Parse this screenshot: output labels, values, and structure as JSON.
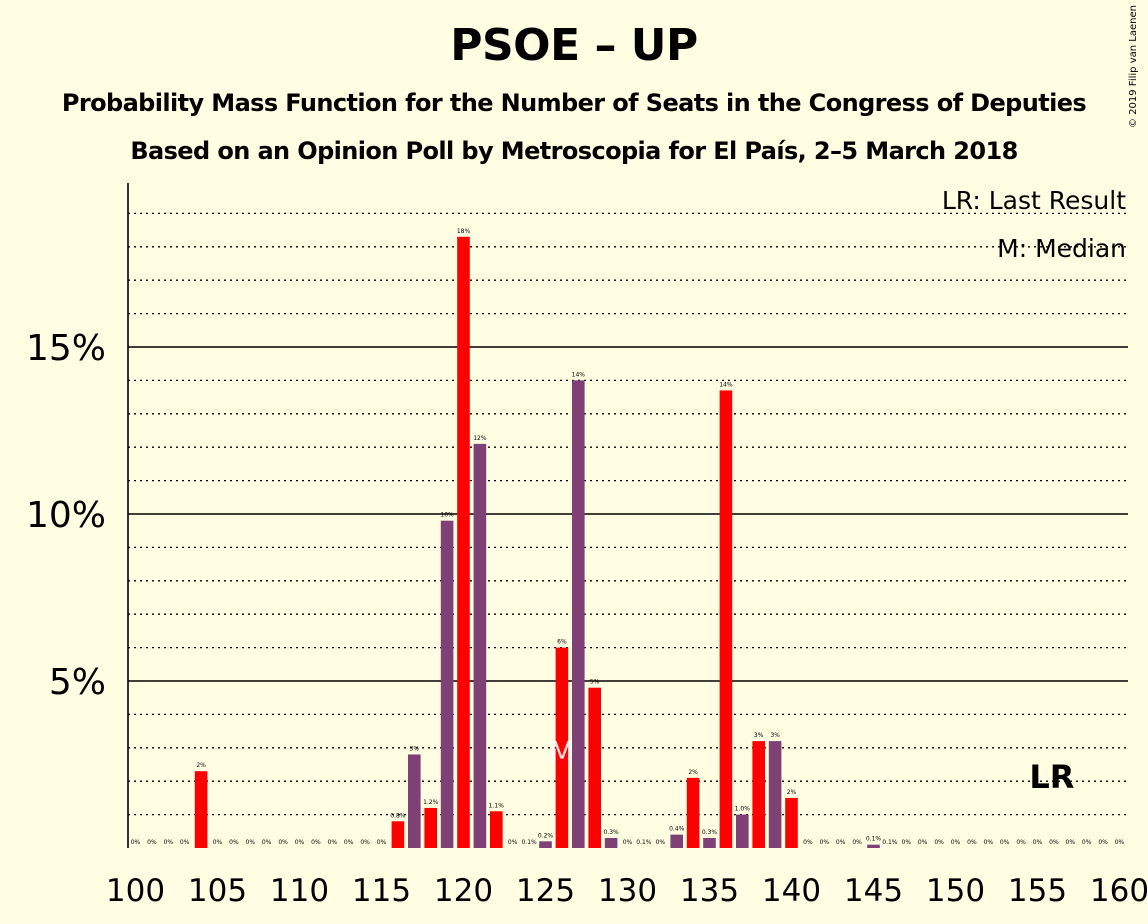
{
  "title": "PSOE – UP",
  "subtitle1": "Probability Mass Function for the Number of Seats in the Congress of Deputies",
  "subtitle2": "Based on an Opinion Poll by Metroscopia for El País, 2–5 March 2018",
  "copyright": "© 2019 Filip van Laenen",
  "legend": {
    "lr": "LR: Last Result",
    "m": "M: Median"
  },
  "markers": {
    "median_label": "M",
    "median_seat": 126,
    "lr_label": "LR",
    "lr_seat": 156
  },
  "colors": {
    "background": "#FFFEE3",
    "red": "#FF0000",
    "purple": "#7E4075"
  },
  "chart_data": {
    "type": "bar",
    "xlabel": "",
    "ylabel": "",
    "xlim": [
      100,
      160
    ],
    "ylim": [
      0,
      20
    ],
    "x_tick_labels": [
      "100",
      "105",
      "110",
      "115",
      "120",
      "125",
      "130",
      "135",
      "140",
      "145",
      "150",
      "155",
      "160"
    ],
    "y_tick_labels": [
      "5%",
      "10%",
      "15%"
    ],
    "bars": [
      {
        "x": 100,
        "v": 0,
        "label": "0%",
        "color": "purple"
      },
      {
        "x": 101,
        "v": 0,
        "label": "0%",
        "color": "purple"
      },
      {
        "x": 102,
        "v": 0,
        "label": "0%",
        "color": "purple"
      },
      {
        "x": 103,
        "v": 0,
        "label": "0%",
        "color": "purple"
      },
      {
        "x": 104,
        "v": 2.3,
        "label": "2%",
        "color": "red"
      },
      {
        "x": 105,
        "v": 0,
        "label": "0%",
        "color": "purple"
      },
      {
        "x": 106,
        "v": 0,
        "label": "0%",
        "color": "purple"
      },
      {
        "x": 107,
        "v": 0,
        "label": "0%",
        "color": "purple"
      },
      {
        "x": 108,
        "v": 0,
        "label": "0%",
        "color": "purple"
      },
      {
        "x": 109,
        "v": 0,
        "label": "0%",
        "color": "purple"
      },
      {
        "x": 110,
        "v": 0,
        "label": "0%",
        "color": "purple"
      },
      {
        "x": 111,
        "v": 0,
        "label": "0%",
        "color": "purple"
      },
      {
        "x": 112,
        "v": 0,
        "label": "0%",
        "color": "purple"
      },
      {
        "x": 113,
        "v": 0,
        "label": "0%",
        "color": "purple"
      },
      {
        "x": 114,
        "v": 0,
        "label": "0%",
        "color": "purple"
      },
      {
        "x": 115,
        "v": 0,
        "label": "0%",
        "color": "purple"
      },
      {
        "x": 116,
        "v": 0.8,
        "label": "0.8%",
        "color": "red"
      },
      {
        "x": 117,
        "v": 2.8,
        "label": "3%",
        "color": "purple"
      },
      {
        "x": 118,
        "v": 1.2,
        "label": "1.2%",
        "color": "red"
      },
      {
        "x": 119,
        "v": 9.8,
        "label": "10%",
        "color": "purple"
      },
      {
        "x": 120,
        "v": 18.3,
        "label": "18%",
        "color": "red"
      },
      {
        "x": 121,
        "v": 12.1,
        "label": "12%",
        "color": "purple"
      },
      {
        "x": 122,
        "v": 1.1,
        "label": "1.1%",
        "color": "red"
      },
      {
        "x": 123,
        "v": 0,
        "label": "0%",
        "color": "purple"
      },
      {
        "x": 124,
        "v": 0,
        "label": "0.1%",
        "color": "purple"
      },
      {
        "x": 125,
        "v": 0.2,
        "label": "0.2%",
        "color": "purple"
      },
      {
        "x": 126,
        "v": 6.0,
        "label": "6%",
        "color": "red"
      },
      {
        "x": 127,
        "v": 14.0,
        "label": "14%",
        "color": "purple"
      },
      {
        "x": 128,
        "v": 4.8,
        "label": "5%",
        "color": "red"
      },
      {
        "x": 129,
        "v": 0.3,
        "label": "0.3%",
        "color": "purple"
      },
      {
        "x": 130,
        "v": 0,
        "label": "0%",
        "color": "purple"
      },
      {
        "x": 131,
        "v": 0,
        "label": "0.1%",
        "color": "purple"
      },
      {
        "x": 132,
        "v": 0,
        "label": "0%",
        "color": "purple"
      },
      {
        "x": 133,
        "v": 0.4,
        "label": "0.4%",
        "color": "purple"
      },
      {
        "x": 134,
        "v": 2.1,
        "label": "2%",
        "color": "red"
      },
      {
        "x": 135,
        "v": 0.3,
        "label": "0.3%",
        "color": "purple"
      },
      {
        "x": 136,
        "v": 13.7,
        "label": "14%",
        "color": "red"
      },
      {
        "x": 137,
        "v": 1.0,
        "label": "1.0%",
        "color": "purple"
      },
      {
        "x": 138,
        "v": 3.2,
        "label": "3%",
        "color": "red"
      },
      {
        "x": 139,
        "v": 3.2,
        "label": "3%",
        "color": "purple"
      },
      {
        "x": 140,
        "v": 1.5,
        "label": "2%",
        "color": "red"
      },
      {
        "x": 141,
        "v": 0,
        "label": "0%",
        "color": "purple"
      },
      {
        "x": 142,
        "v": 0,
        "label": "0%",
        "color": "purple"
      },
      {
        "x": 143,
        "v": 0,
        "label": "0%",
        "color": "purple"
      },
      {
        "x": 144,
        "v": 0,
        "label": "0%",
        "color": "purple"
      },
      {
        "x": 145,
        "v": 0.1,
        "label": "0.1%",
        "color": "purple"
      },
      {
        "x": 146,
        "v": 0,
        "label": "0.1%",
        "color": "purple"
      },
      {
        "x": 147,
        "v": 0,
        "label": "0%",
        "color": "purple"
      },
      {
        "x": 148,
        "v": 0,
        "label": "0%",
        "color": "purple"
      },
      {
        "x": 149,
        "v": 0,
        "label": "0%",
        "color": "purple"
      },
      {
        "x": 150,
        "v": 0,
        "label": "0%",
        "color": "purple"
      },
      {
        "x": 151,
        "v": 0,
        "label": "0%",
        "color": "purple"
      },
      {
        "x": 152,
        "v": 0,
        "label": "0%",
        "color": "purple"
      },
      {
        "x": 153,
        "v": 0,
        "label": "0%",
        "color": "purple"
      },
      {
        "x": 154,
        "v": 0,
        "label": "0%",
        "color": "purple"
      },
      {
        "x": 155,
        "v": 0,
        "label": "0%",
        "color": "purple"
      },
      {
        "x": 156,
        "v": 0,
        "label": "0%",
        "color": "purple"
      },
      {
        "x": 157,
        "v": 0,
        "label": "0%",
        "color": "purple"
      },
      {
        "x": 158,
        "v": 0,
        "label": "0%",
        "color": "purple"
      },
      {
        "x": 159,
        "v": 0,
        "label": "0%",
        "color": "purple"
      },
      {
        "x": 160,
        "v": 0,
        "label": "0%",
        "color": "purple"
      }
    ]
  }
}
